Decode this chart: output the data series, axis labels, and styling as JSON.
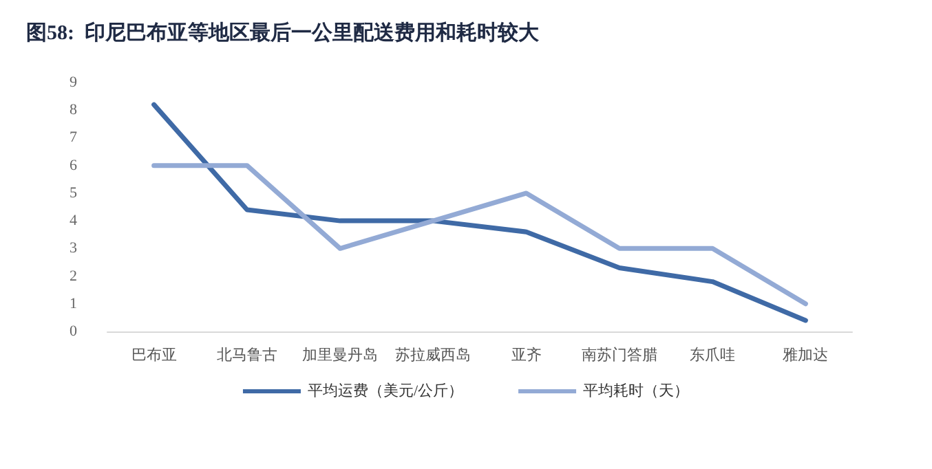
{
  "chart_data": {
    "type": "line",
    "title": "图58:  印尼巴布亚等地区最后一公里配送费用和耗时较大",
    "categories": [
      "巴布亚",
      "北马鲁古",
      "加里曼丹岛",
      "苏拉威西岛",
      "亚齐",
      "南苏门答腊",
      "东爪哇",
      "雅加达"
    ],
    "series": [
      {
        "name": "平均运费（美元/公斤）",
        "color": "#3f6aa6",
        "values": [
          8.2,
          4.4,
          4.0,
          4.0,
          3.6,
          2.3,
          1.8,
          0.4
        ]
      },
      {
        "name": "平均耗时（天）",
        "color": "#93aad5",
        "values": [
          6,
          6,
          3,
          4,
          5,
          3,
          3,
          1
        ]
      }
    ],
    "ylim": [
      0,
      9
    ],
    "yticks": [
      0,
      1,
      2,
      3,
      4,
      5,
      6,
      7,
      8,
      9
    ],
    "grid": false,
    "legend": "bottom",
    "marker": "none",
    "line_style": "solid"
  }
}
